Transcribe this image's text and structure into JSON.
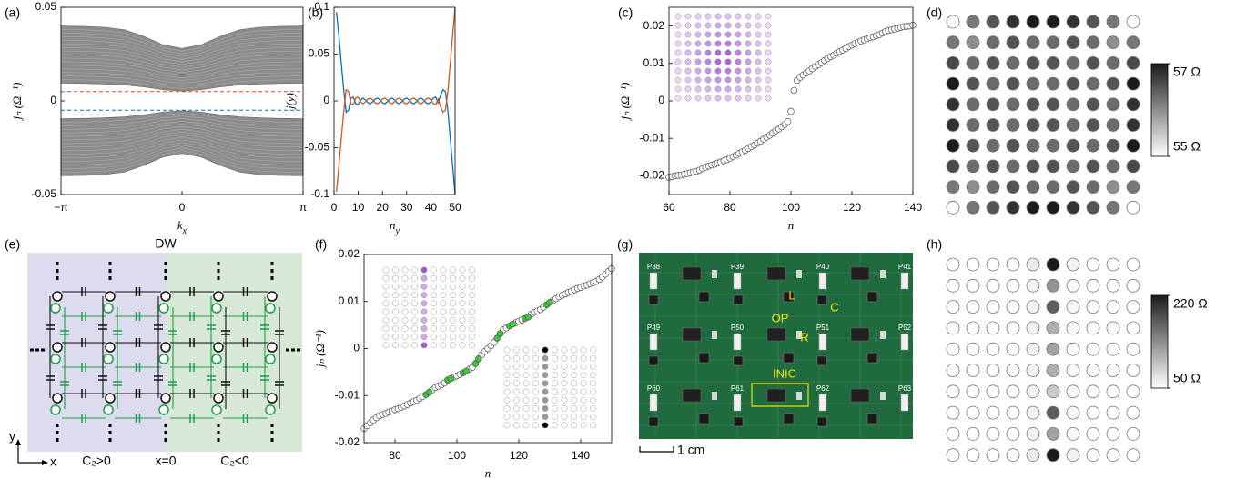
{
  "chart_data": [
    {
      "type": "band",
      "panel_label": "(a)",
      "xlabel": [
        "k",
        "x"
      ],
      "ylabel": "jₙ (Ω⁻¹)",
      "xlim": [
        -3.1416,
        3.1416
      ],
      "ylim": [
        -0.05,
        0.05
      ],
      "xticks": [
        {
          "value": -3.1416,
          "label": "−π"
        },
        0,
        {
          "value": 3.1416,
          "label": "π"
        }
      ],
      "yticks": [
        -0.05,
        0,
        0.05
      ],
      "x": [
        -3.1416,
        -2.5,
        -2,
        -1.5,
        -1,
        -0.5,
        0,
        0.5,
        1,
        1.5,
        2,
        2.5,
        3.1416
      ],
      "band_color": "#8c8c8c",
      "bands": [
        {
          "upper": [
            0.04,
            0.0398,
            0.0393,
            0.038,
            0.0345,
            0.03,
            0.028,
            0.03,
            0.0345,
            0.038,
            0.0393,
            0.0398,
            0.04
          ],
          "lower": [
            0.0095,
            0.0093,
            0.009,
            0.0085,
            0.0075,
            0.006,
            0.0052,
            0.006,
            0.0075,
            0.0085,
            0.009,
            0.0093,
            0.0095
          ]
        },
        {
          "upper": [
            -0.0095,
            -0.0093,
            -0.009,
            -0.0085,
            -0.0075,
            -0.006,
            -0.0052,
            -0.006,
            -0.0075,
            -0.0085,
            -0.009,
            -0.0093,
            -0.0095
          ],
          "lower": [
            -0.04,
            -0.0398,
            -0.0393,
            -0.038,
            -0.0345,
            -0.03,
            -0.028,
            -0.03,
            -0.0345,
            -0.038,
            -0.0393,
            -0.0398,
            -0.04
          ]
        }
      ],
      "line_style": "dashed",
      "lines": [
        {
          "value": 0.005,
          "color": "#d95319"
        },
        {
          "value": -0.005,
          "color": "#0072bd"
        }
      ]
    },
    {
      "type": "line",
      "panel_label": "(b)",
      "xlabel": [
        "n",
        "y"
      ],
      "ylabel": "j(y)",
      "xlim": [
        0,
        50
      ],
      "ylim": [
        -0.1,
        0.1
      ],
      "xticks": [
        0,
        10,
        20,
        30,
        40,
        50
      ],
      "yticks": [
        -0.1,
        -0.05,
        0,
        0.05,
        0.1
      ],
      "x": [
        1,
        2,
        3,
        4,
        5,
        6,
        7,
        8,
        9,
        10,
        11,
        12,
        13,
        14,
        15,
        16,
        17,
        18,
        19,
        20,
        21,
        22,
        23,
        24,
        25,
        26,
        27,
        28,
        29,
        30,
        31,
        32,
        33,
        34,
        35,
        36,
        37,
        38,
        39,
        40,
        41,
        42,
        43,
        44,
        45,
        46,
        47,
        48,
        49,
        50
      ],
      "series": [
        {
          "color": "#0072bd",
          "values": [
            0.095,
            0.07,
            0.04,
            0.012,
            -0.012,
            -0.01,
            0.003,
            0.004,
            -0.003,
            -0.004,
            0.001,
            0.003,
            0.001,
            -0.002,
            -0.003,
            -0.001,
            0.002,
            0.003,
            0.001,
            -0.002,
            -0.003,
            -0.001,
            0.002,
            0.003,
            0.001,
            -0.002,
            -0.003,
            -0.001,
            0.002,
            0.003,
            0.001,
            -0.002,
            -0.003,
            -0.001,
            0.002,
            0.003,
            0.001,
            -0.002,
            -0.003,
            -0.001,
            0.003,
            0.004,
            -0.002,
            0.006,
            0.012,
            0.01,
            -0.01,
            -0.04,
            -0.07,
            -0.1
          ]
        },
        {
          "color": "#d95319",
          "values": [
            -0.097,
            -0.07,
            -0.04,
            -0.012,
            0.012,
            0.01,
            -0.003,
            -0.004,
            0.003,
            0.004,
            -0.001,
            -0.003,
            -0.001,
            0.002,
            0.003,
            0.001,
            -0.002,
            -0.003,
            -0.001,
            0.002,
            0.003,
            0.001,
            -0.002,
            -0.003,
            -0.001,
            0.002,
            0.003,
            0.001,
            -0.002,
            -0.003,
            -0.001,
            0.002,
            0.003,
            0.001,
            -0.002,
            -0.003,
            -0.001,
            0.002,
            0.003,
            0.001,
            -0.003,
            -0.004,
            0.002,
            -0.006,
            -0.012,
            -0.01,
            0.01,
            0.04,
            0.07,
            0.1
          ]
        }
      ]
    },
    {
      "type": "scatter",
      "panel_label": "(c)",
      "xlabel": "n",
      "ylabel": "jₙ (Ω⁻¹)",
      "xlim": [
        60,
        140
      ],
      "ylim": [
        -0.025,
        0.025
      ],
      "xticks": [
        60,
        80,
        100,
        120,
        140
      ],
      "yticks": [
        -0.02,
        -0.01,
        0,
        0.01,
        0.02
      ],
      "series": [
        {
          "color": "#ffffff",
          "x": [
            60,
            61,
            62,
            63,
            64,
            65,
            66,
            67,
            68,
            69,
            70,
            71,
            72,
            73,
            74,
            75,
            76,
            77,
            78,
            79,
            80,
            81,
            82,
            83,
            84,
            85,
            86,
            87,
            88,
            89,
            90,
            91,
            92,
            93,
            94,
            95,
            96,
            97,
            98,
            99,
            100,
            101,
            102,
            103,
            104,
            105,
            106,
            107,
            108,
            109,
            110,
            111,
            112,
            113,
            114,
            115,
            116,
            117,
            118,
            119,
            120,
            121,
            122,
            123,
            124,
            125,
            126,
            127,
            128,
            129,
            130,
            131,
            132,
            133,
            134,
            135,
            136,
            137,
            138,
            139,
            140
          ],
          "values": [
            -0.0204,
            -0.0202,
            -0.02,
            -0.0199,
            -0.0198,
            -0.0196,
            -0.0194,
            -0.0192,
            -0.019,
            -0.0188,
            -0.0185,
            -0.0181,
            -0.0177,
            -0.0174,
            -0.0171,
            -0.0169,
            -0.0166,
            -0.0163,
            -0.016,
            -0.0157,
            -0.0153,
            -0.0149,
            -0.0145,
            -0.014,
            -0.0136,
            -0.0132,
            -0.0127,
            -0.0122,
            -0.0118,
            -0.0113,
            -0.0108,
            -0.0102,
            -0.0097,
            -0.0092,
            -0.0086,
            -0.008,
            -0.0075,
            -0.0069,
            -0.0063,
            -0.0055,
            -0.0028,
            0.0028,
            0.0055,
            0.0063,
            0.0069,
            0.0075,
            0.008,
            0.0086,
            0.0092,
            0.0097,
            0.0102,
            0.0108,
            0.0113,
            0.0118,
            0.0122,
            0.0127,
            0.0132,
            0.0136,
            0.014,
            0.0145,
            0.0149,
            0.0153,
            0.0157,
            0.016,
            0.0163,
            0.0166,
            0.0169,
            0.0171,
            0.0174,
            0.0177,
            0.0181,
            0.0185,
            0.0188,
            0.019,
            0.0192,
            0.0194,
            0.0196,
            0.0198,
            0.0199,
            0.02,
            0.0202
          ]
        }
      ]
    },
    {
      "type": "heatmap",
      "panel_label": "(d)",
      "clim": [
        55,
        57
      ],
      "colormap": [
        "#ffffff",
        "#1f1a1a"
      ],
      "cticks": [
        {
          "value": 55,
          "label": "55 Ω"
        },
        {
          "value": 57,
          "label": "57 Ω"
        }
      ],
      "values": [
        [
          55,
          56.2,
          56.5,
          56.8,
          57,
          57,
          56.8,
          56.5,
          56.2,
          55
        ],
        [
          56.2,
          56,
          56.3,
          56.5,
          56.3,
          56.3,
          56.5,
          56.3,
          56,
          56.2
        ],
        [
          56.6,
          56.3,
          56.5,
          56.3,
          56.5,
          56.5,
          56.3,
          56.5,
          56.3,
          56.6
        ],
        [
          57,
          56.5,
          56.3,
          56.5,
          56.3,
          56.3,
          56.5,
          56.3,
          56.5,
          57
        ],
        [
          56.8,
          56.3,
          56.5,
          56.3,
          56.5,
          56.5,
          56.3,
          56.5,
          56.3,
          56.8
        ],
        [
          56.8,
          56.3,
          56.5,
          56.3,
          56.5,
          56.5,
          56.3,
          56.5,
          56.3,
          56.8
        ],
        [
          57,
          56.5,
          56.3,
          56.5,
          56.3,
          56.3,
          56.5,
          56.3,
          56.5,
          57
        ],
        [
          56.6,
          56.3,
          56.5,
          56.3,
          56.5,
          56.5,
          56.3,
          56.5,
          56.3,
          56.6
        ],
        [
          56.2,
          56,
          56.3,
          56.5,
          56.3,
          56.3,
          56.5,
          56.3,
          56,
          56.2
        ],
        [
          55,
          56.2,
          56.5,
          56.8,
          57,
          57,
          56.8,
          56.5,
          56.2,
          55
        ]
      ]
    },
    {
      "type": "scatter",
      "panel_label": "(f)",
      "xlabel": "n",
      "ylabel": "jₙ (Ω⁻¹)",
      "xlim": [
        70,
        150
      ],
      "ylim": [
        -0.02,
        0.02
      ],
      "xticks": [
        80,
        100,
        120,
        140
      ],
      "yticks": [
        -0.02,
        -0.01,
        0,
        0.01,
        0.02
      ],
      "series": [
        {
          "color": "#ffffff",
          "x": [
            70,
            71,
            72,
            73,
            74,
            75,
            76,
            77,
            78,
            79,
            80,
            81,
            82,
            83,
            84,
            85,
            86,
            87,
            88,
            89,
            92,
            93,
            94,
            95,
            96,
            99,
            100,
            101,
            104,
            105,
            108,
            109,
            110,
            111,
            112,
            115,
            116,
            119,
            120,
            121,
            124,
            125,
            126,
            127,
            128,
            131,
            132,
            133,
            134,
            135,
            136,
            137,
            138,
            139,
            140,
            141,
            142,
            143,
            144,
            145,
            146,
            147,
            148,
            149,
            150
          ],
          "values": [
            -0.017,
            -0.0164,
            -0.0158,
            -0.0152,
            -0.0147,
            -0.0143,
            -0.014,
            -0.0138,
            -0.0135,
            -0.0133,
            -0.013,
            -0.0128,
            -0.0125,
            -0.0122,
            -0.0119,
            -0.0116,
            -0.0113,
            -0.011,
            -0.0106,
            -0.0102,
            -0.0088,
            -0.0083,
            -0.008,
            -0.0077,
            -0.0073,
            -0.0061,
            -0.0058,
            -0.0055,
            -0.0044,
            -0.004,
            -0.0013,
            -0.0006,
            0,
            0.0006,
            0.0013,
            0.004,
            0.0044,
            0.0055,
            0.0058,
            0.0061,
            0.0073,
            0.0077,
            0.008,
            0.0083,
            0.0088,
            0.0102,
            0.0106,
            0.011,
            0.0113,
            0.0116,
            0.0119,
            0.0122,
            0.0125,
            0.0128,
            0.013,
            0.0133,
            0.0135,
            0.0138,
            0.014,
            0.0143,
            0.0147,
            0.0152,
            0.0158,
            0.0164,
            0.017
          ]
        },
        {
          "color": "#3ec43e",
          "x": [
            90,
            91,
            97,
            98,
            102,
            103,
            106,
            107,
            113,
            114,
            117,
            118,
            122,
            123,
            129,
            130
          ],
          "values": [
            -0.0098,
            -0.0093,
            -0.0067,
            -0.0064,
            -0.0052,
            -0.0048,
            -0.0032,
            -0.0022,
            0.0022,
            0.0032,
            0.0048,
            0.0052,
            0.0064,
            0.0067,
            0.0093,
            0.0098
          ]
        }
      ]
    },
    {
      "type": "heatmap",
      "panel_label": "(h)",
      "clim": [
        50,
        220
      ],
      "colormap": [
        "#ffffff",
        "#1f1a1a"
      ],
      "cticks": [
        {
          "value": 50,
          "label": "50 Ω"
        },
        {
          "value": 220,
          "label": "220 Ω"
        }
      ],
      "values": [
        [
          50,
          50,
          50,
          50,
          65,
          220,
          60,
          50,
          50,
          50
        ],
        [
          50,
          50,
          50,
          50,
          60,
          130,
          55,
          50,
          50,
          50
        ],
        [
          50,
          50,
          50,
          50,
          60,
          170,
          55,
          50,
          50,
          50
        ],
        [
          50,
          50,
          50,
          50,
          60,
          110,
          55,
          50,
          50,
          50
        ],
        [
          50,
          50,
          50,
          50,
          60,
          120,
          55,
          50,
          50,
          50
        ],
        [
          50,
          50,
          50,
          50,
          60,
          110,
          55,
          50,
          50,
          50
        ],
        [
          50,
          50,
          50,
          50,
          60,
          90,
          55,
          50,
          50,
          50
        ],
        [
          50,
          50,
          50,
          50,
          60,
          170,
          55,
          50,
          50,
          50
        ],
        [
          50,
          50,
          50,
          50,
          60,
          120,
          55,
          50,
          50,
          50
        ],
        [
          50,
          50,
          50,
          50,
          65,
          220,
          60,
          50,
          50,
          50
        ]
      ]
    }
  ],
  "circuit": {
    "panel_label": "(e)",
    "wall": "DW",
    "axis_y": "y",
    "axis_x": "x",
    "left": "C₂>0",
    "center": "x=0",
    "right": "C₂<0"
  },
  "photo": {
    "panel_label": "(g)",
    "pins": [
      "P38",
      "P39",
      "P40",
      "P41",
      "P49",
      "P50",
      "P51",
      "P52",
      "P60",
      "P61",
      "P62",
      "P63"
    ],
    "parts": [
      "L",
      "C",
      "OP",
      "R",
      "INIC"
    ],
    "scale": "1 cm"
  }
}
